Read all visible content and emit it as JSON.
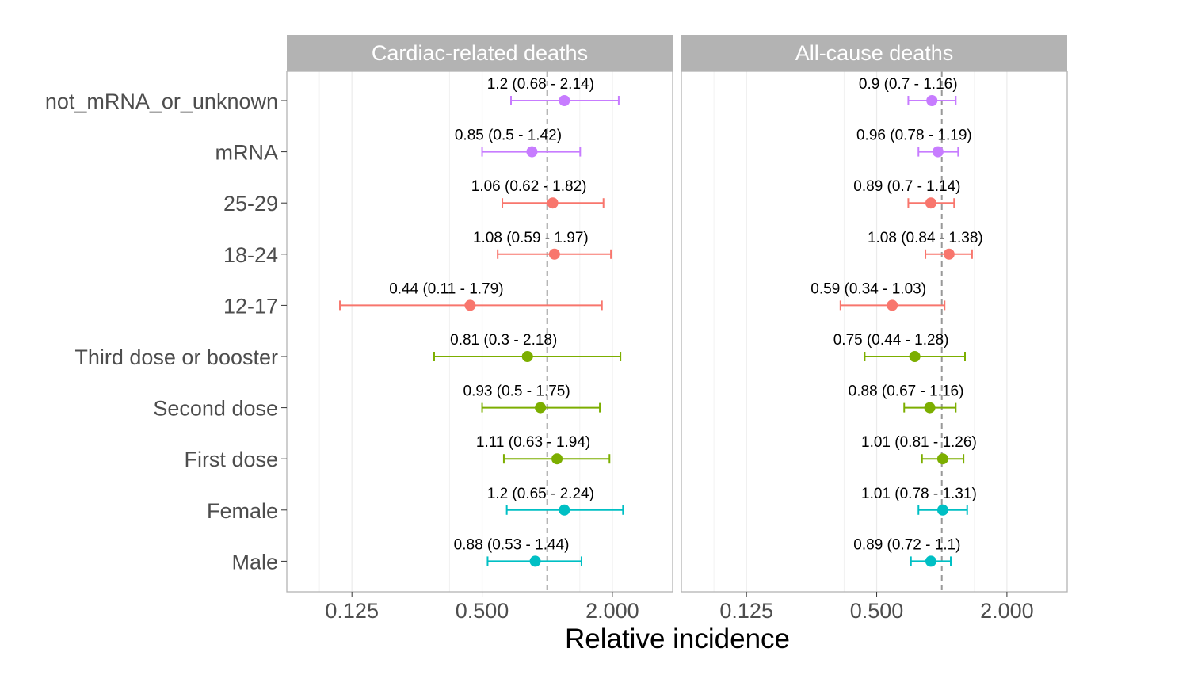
{
  "chart_data": {
    "type": "forest",
    "xlabel": "Relative incidence",
    "x_scale": "log2",
    "xlim": [
      0.0625,
      3.8
    ],
    "x_ticks": [
      0.125,
      0.5,
      2.0
    ],
    "x_tick_labels": [
      "0.125",
      "0.500",
      "2.000"
    ],
    "reference_line": 1,
    "categories": [
      "not_mRNA_or_unknown",
      "mRNA",
      "25-29",
      "18-24",
      "12-17",
      "Third dose or booster",
      "Second dose",
      "First dose",
      "Female",
      "Male"
    ],
    "colors": {
      "vaccine_type": "#C77CFF",
      "age_group": "#F8766D",
      "dose": "#7CAE00",
      "sex": "#00BFC4"
    },
    "category_groups": [
      "vaccine_type",
      "vaccine_type",
      "age_group",
      "age_group",
      "age_group",
      "dose",
      "dose",
      "dose",
      "sex",
      "sex"
    ],
    "panels": [
      {
        "title": "Cardiac-related deaths",
        "estimates": [
          1.2,
          0.85,
          1.06,
          1.08,
          0.44,
          0.81,
          0.93,
          1.11,
          1.2,
          0.88
        ],
        "lower": [
          0.68,
          0.5,
          0.62,
          0.59,
          0.11,
          0.3,
          0.5,
          0.63,
          0.65,
          0.53
        ],
        "upper": [
          2.14,
          1.42,
          1.82,
          1.97,
          1.79,
          2.18,
          1.75,
          1.94,
          2.24,
          1.44
        ],
        "labels": [
          "1.2 (0.68 - 2.14)",
          "0.85 (0.5 - 1.42)",
          "1.06 (0.62 - 1.82)",
          "1.08 (0.59 - 1.97)",
          "0.44 (0.11 - 1.79)",
          "0.81 (0.3 - 2.18)",
          "0.93 (0.5 - 1.75)",
          "1.11 (0.63 - 1.94)",
          "1.2 (0.65 - 2.24)",
          "0.88 (0.53 - 1.44)"
        ]
      },
      {
        "title": "All-cause deaths",
        "estimates": [
          0.9,
          0.96,
          0.89,
          1.08,
          0.59,
          0.75,
          0.88,
          1.01,
          1.01,
          0.89
        ],
        "lower": [
          0.7,
          0.78,
          0.7,
          0.84,
          0.34,
          0.44,
          0.67,
          0.81,
          0.78,
          0.72
        ],
        "upper": [
          1.16,
          1.19,
          1.14,
          1.38,
          1.03,
          1.28,
          1.16,
          1.26,
          1.31,
          1.1
        ],
        "labels": [
          "0.9 (0.7 - 1.16)",
          "0.96 (0.78 - 1.19)",
          "0.89 (0.7 - 1.14)",
          "1.08 (0.84 - 1.38)",
          "0.59 (0.34 - 1.03)",
          "0.75 (0.44 - 1.28)",
          "0.88 (0.67 - 1.16)",
          "1.01 (0.81 - 1.26)",
          "1.01 (0.78 - 1.31)",
          "0.89 (0.72 - 1.1)"
        ]
      }
    ]
  }
}
